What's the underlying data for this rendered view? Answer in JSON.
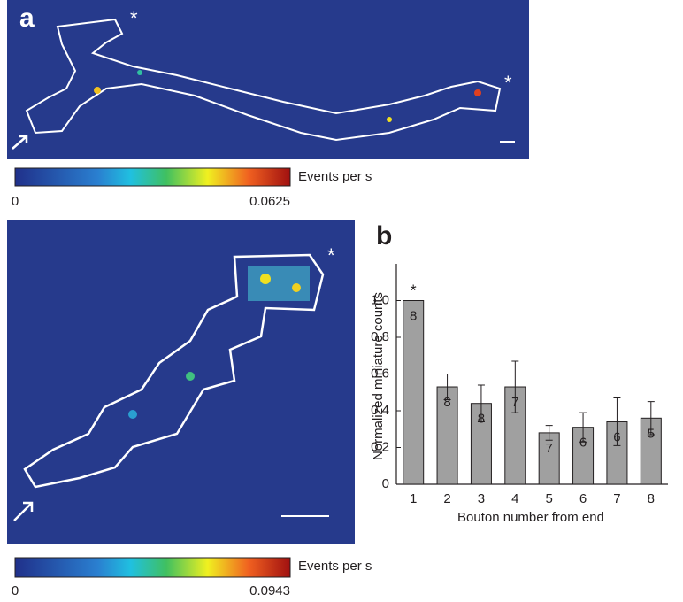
{
  "panel_a": {
    "label": "a",
    "markers": [
      "*",
      "*"
    ],
    "colorbars": [
      {
        "title": "Events per s",
        "min": "0",
        "max": "0.0625"
      },
      {
        "title": "Events per s",
        "min": "0",
        "max": "0.0943"
      }
    ],
    "lower_marker": "*"
  },
  "panel_b": {
    "label": "b"
  },
  "chart_data": {
    "type": "bar",
    "xlabel": "Bouton number from end",
    "ylabel": "Normalized miniature counts",
    "categories": [
      "1",
      "2",
      "3",
      "4",
      "5",
      "6",
      "7",
      "8"
    ],
    "values": [
      1.0,
      0.53,
      0.44,
      0.53,
      0.28,
      0.31,
      0.34,
      0.36
    ],
    "errors": [
      null,
      0.07,
      0.1,
      0.14,
      0.04,
      0.08,
      0.13,
      0.09
    ],
    "n": [
      8,
      8,
      8,
      7,
      7,
      6,
      6,
      5
    ],
    "annotation": {
      "text": "*",
      "category": 0
    },
    "color": "#a0a0a0",
    "ylim": [
      0,
      1.2
    ],
    "yticks": [
      0,
      0.2,
      0.4,
      0.6,
      0.8,
      {
        "value": 1,
        "label": "1.0"
      }
    ],
    "grid": false
  }
}
